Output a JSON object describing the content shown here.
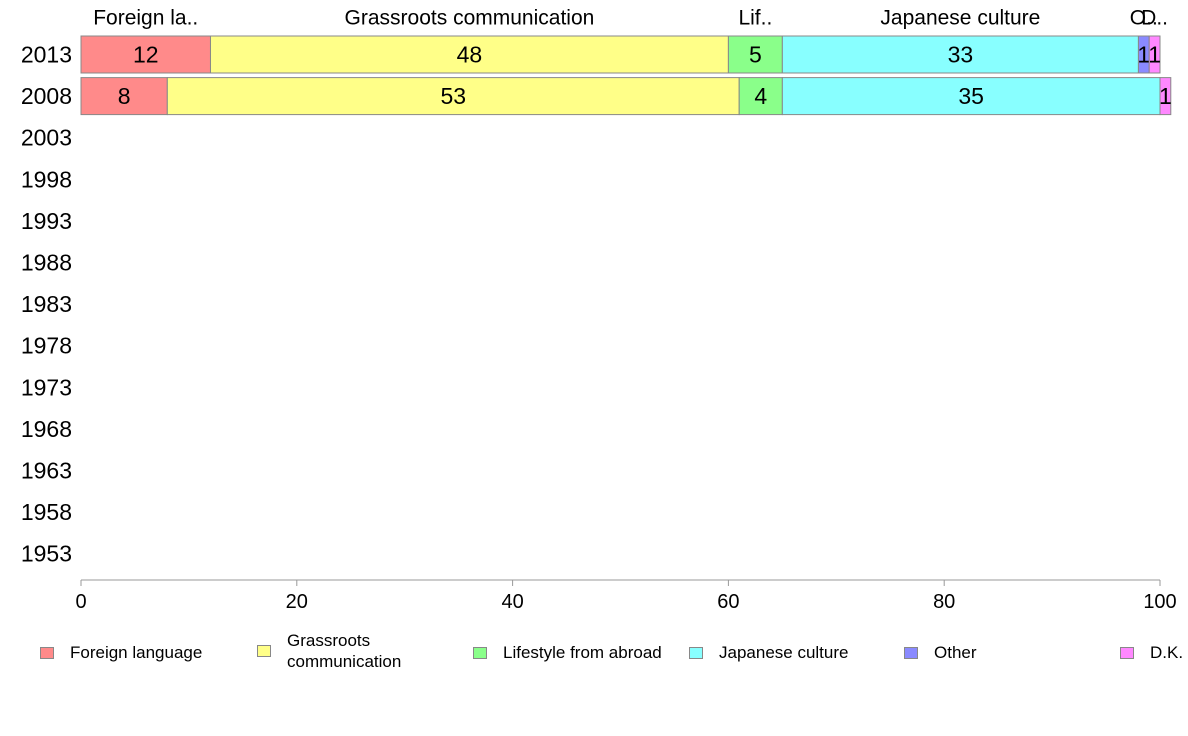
{
  "chart_data": {
    "type": "bar",
    "orientation": "horizontal",
    "stacked": true,
    "categories": [
      "2013",
      "2008",
      "2003",
      "1998",
      "1993",
      "1988",
      "1983",
      "1978",
      "1973",
      "1968",
      "1963",
      "1958",
      "1953"
    ],
    "series": [
      {
        "name": "Foreign language",
        "header": "Foreign la..",
        "color": "#ff8a8a",
        "values": [
          12,
          8,
          null,
          null,
          null,
          null,
          null,
          null,
          null,
          null,
          null,
          null,
          null
        ]
      },
      {
        "name": "Grassroots communication",
        "header": "Grassroots communication",
        "color": "#ffff88",
        "values": [
          48,
          53,
          null,
          null,
          null,
          null,
          null,
          null,
          null,
          null,
          null,
          null,
          null
        ]
      },
      {
        "name": "Lifestyle from abroad",
        "header": "Lif..",
        "color": "#8aff8a",
        "values": [
          5,
          4,
          null,
          null,
          null,
          null,
          null,
          null,
          null,
          null,
          null,
          null,
          null
        ]
      },
      {
        "name": "Japanese culture",
        "header": "Japanese culture",
        "color": "#88ffff",
        "values": [
          33,
          35,
          null,
          null,
          null,
          null,
          null,
          null,
          null,
          null,
          null,
          null,
          null
        ]
      },
      {
        "name": "Other",
        "header": "O..",
        "color": "#8a8aff",
        "values": [
          1,
          0,
          null,
          null,
          null,
          null,
          null,
          null,
          null,
          null,
          null,
          null,
          null
        ]
      },
      {
        "name": "D.K.",
        "header": "D..",
        "color": "#ff88ff",
        "values": [
          1,
          1,
          null,
          null,
          null,
          null,
          null,
          null,
          null,
          null,
          null,
          null,
          null
        ]
      }
    ],
    "xlim": [
      0,
      100
    ],
    "xticks": [
      0,
      20,
      40,
      60,
      80,
      100
    ],
    "title": "",
    "xlabel": "",
    "ylabel": "",
    "grid": false,
    "legend_position": "bottom"
  },
  "legend": {
    "items": [
      {
        "label": "Foreign language",
        "color": "#ff8a8a"
      },
      {
        "label": "Grassroots\ncommunication",
        "color": "#ffff88"
      },
      {
        "label": "Lifestyle from abroad",
        "color": "#8aff8a"
      },
      {
        "label": "Japanese culture",
        "color": "#88ffff"
      },
      {
        "label": "Other",
        "color": "#8a8aff"
      },
      {
        "label": "D.K.",
        "color": "#ff88ff"
      }
    ]
  }
}
